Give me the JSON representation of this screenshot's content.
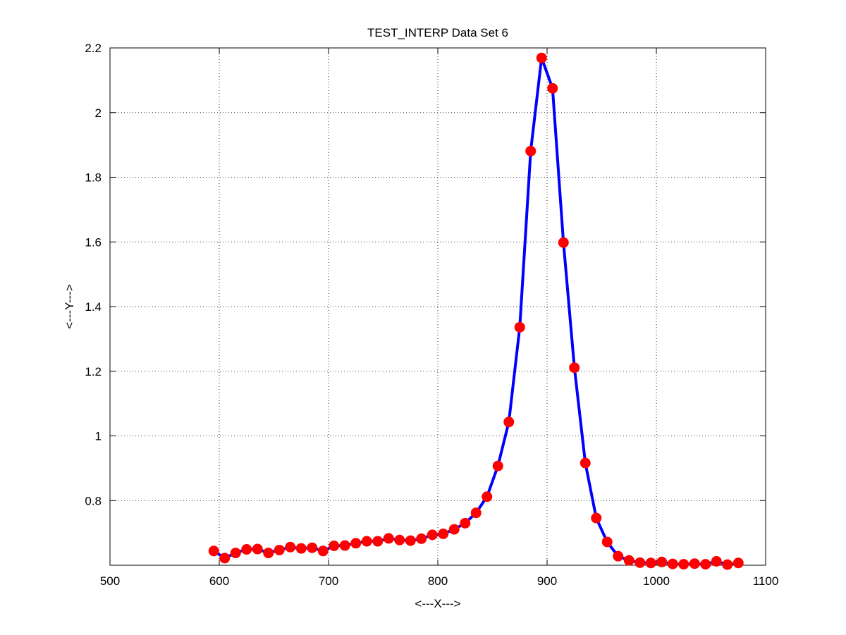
{
  "chart_data": {
    "type": "line",
    "title": "TEST_INTERP Data Set 6",
    "xlabel": "<---X--->",
    "ylabel": "<---Y--->",
    "xlim": [
      500,
      1100
    ],
    "ylim": [
      0.6,
      2.2
    ],
    "xticks": [
      500,
      600,
      700,
      800,
      900,
      1000,
      1100
    ],
    "yticks": [
      0.8,
      1,
      1.2,
      1.4,
      1.6,
      1.8,
      2,
      2.2
    ],
    "xtick_labels": [
      "500",
      "600",
      "700",
      "800",
      "900",
      "1000",
      "1100"
    ],
    "ytick_labels": [
      "0.8",
      "1",
      "1.2",
      "1.4",
      "1.6",
      "1.8",
      "2",
      "2.2"
    ],
    "grid": true,
    "line_color": "#0000ff",
    "marker_color": "#ff0000",
    "series": [
      {
        "x": [
          595,
          605,
          615,
          625,
          635,
          645,
          655,
          665,
          675,
          685,
          695,
          705,
          715,
          725,
          735,
          745,
          755,
          765,
          775,
          785,
          795,
          805,
          815,
          825,
          835,
          845,
          855,
          865,
          875,
          885,
          895,
          905,
          915,
          925,
          935,
          945,
          955,
          965,
          975,
          985,
          995,
          1005,
          1015,
          1025,
          1035,
          1045,
          1055,
          1065,
          1075
        ],
        "y": [
          0.644,
          0.622,
          0.638,
          0.649,
          0.65,
          0.638,
          0.647,
          0.656,
          0.652,
          0.654,
          0.644,
          0.66,
          0.661,
          0.668,
          0.674,
          0.674,
          0.683,
          0.678,
          0.676,
          0.682,
          0.694,
          0.697,
          0.711,
          0.73,
          0.762,
          0.812,
          0.907,
          1.043,
          1.336,
          1.881,
          2.169,
          2.075,
          1.598,
          1.211,
          0.916,
          0.746,
          0.672,
          0.628,
          0.615,
          0.608,
          0.607,
          0.61,
          0.604,
          0.603,
          0.605,
          0.603,
          0.612,
          0.602,
          0.607
        ]
      }
    ]
  }
}
